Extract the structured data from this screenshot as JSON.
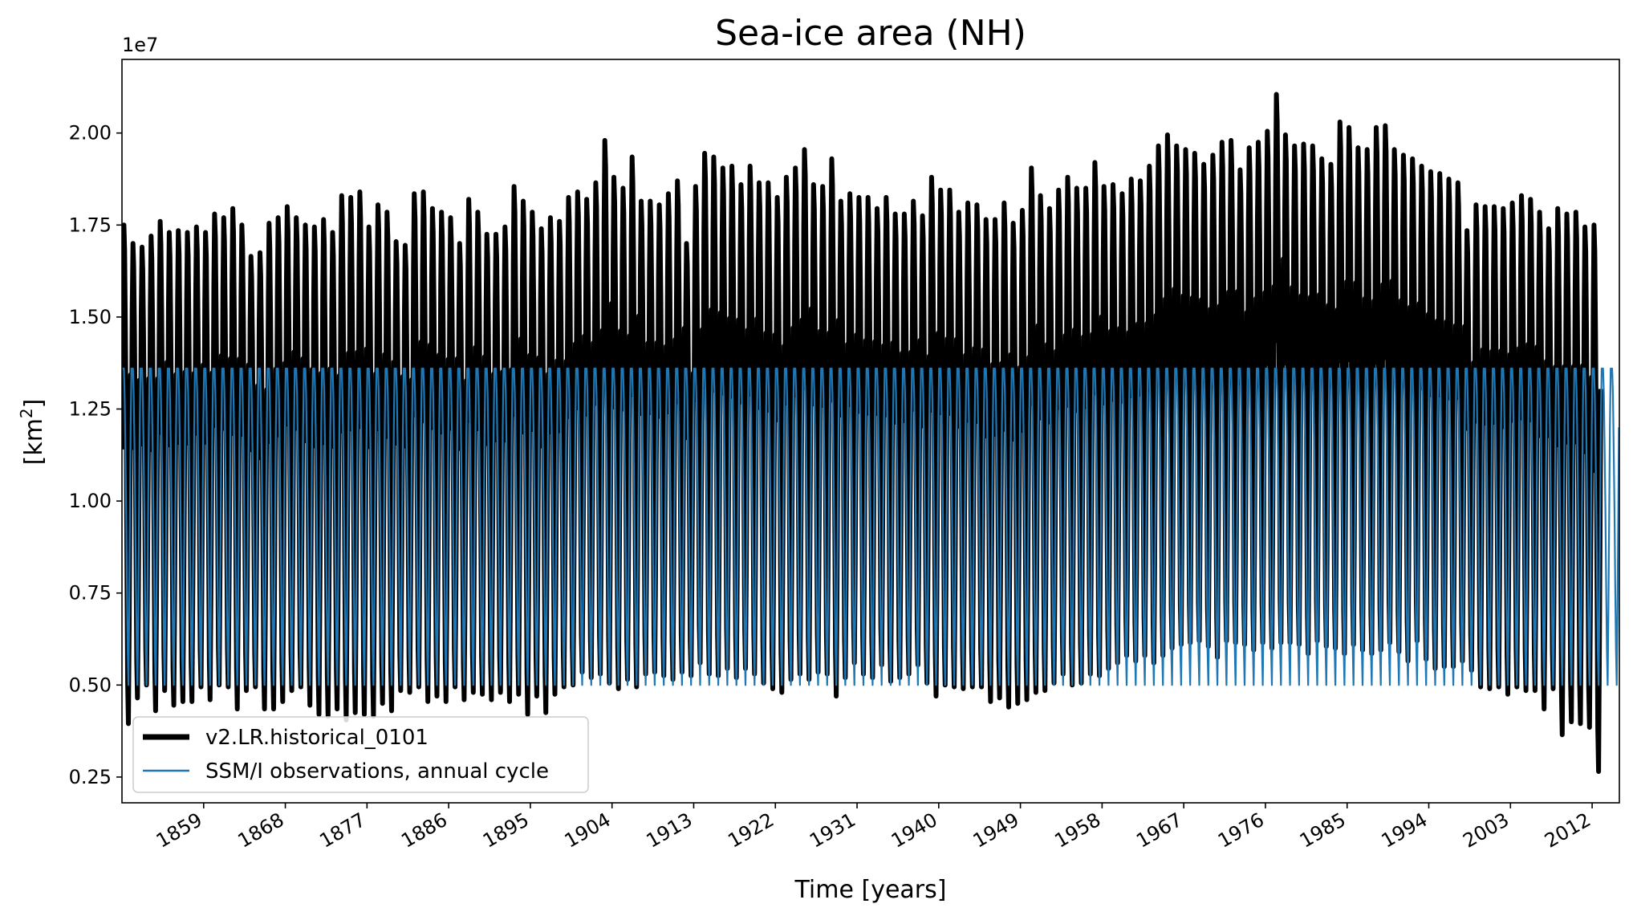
{
  "chart_data": {
    "type": "line",
    "title": "Sea-ice area (NH)",
    "xlabel": "Time [years]",
    "ylabel_base": "[km",
    "ylabel_sup": "2",
    "ylabel_end": "]",
    "offset_text": "1e7",
    "xlim": [
      1850,
      2015
    ],
    "ylim": [
      1800000,
      22000000
    ],
    "x_ticks": [
      1859,
      1868,
      1877,
      1886,
      1895,
      1904,
      1913,
      1922,
      1931,
      1940,
      1949,
      1958,
      1967,
      1976,
      1985,
      1994,
      2003,
      2012
    ],
    "y_ticks": [
      2500000,
      5000000,
      7500000,
      10000000,
      12500000,
      15000000,
      17500000,
      20000000
    ],
    "y_tick_labels": [
      "0.25",
      "0.50",
      "0.75",
      "1.00",
      "1.25",
      "1.50",
      "1.75",
      "2.00"
    ],
    "legend_position": "lower-left",
    "series": [
      {
        "name": "v2.LR.historical_0101",
        "color": "#000000",
        "monthly": true,
        "years": [
          1850,
          1851,
          1852,
          1853,
          1854,
          1855,
          1856,
          1857,
          1858,
          1859,
          1860,
          1861,
          1862,
          1863,
          1864,
          1865,
          1866,
          1867,
          1868,
          1869,
          1870,
          1871,
          1872,
          1873,
          1874,
          1875,
          1876,
          1877,
          1878,
          1879,
          1880,
          1881,
          1882,
          1883,
          1884,
          1885,
          1886,
          1887,
          1888,
          1889,
          1890,
          1891,
          1892,
          1893,
          1894,
          1895,
          1896,
          1897,
          1898,
          1899,
          1900,
          1901,
          1902,
          1903,
          1904,
          1905,
          1906,
          1907,
          1908,
          1909,
          1910,
          1911,
          1912,
          1913,
          1914,
          1915,
          1916,
          1917,
          1918,
          1919,
          1920,
          1921,
          1922,
          1923,
          1924,
          1925,
          1926,
          1927,
          1928,
          1929,
          1930,
          1931,
          1932,
          1933,
          1934,
          1935,
          1936,
          1937,
          1938,
          1939,
          1940,
          1941,
          1942,
          1943,
          1944,
          1945,
          1946,
          1947,
          1948,
          1949,
          1950,
          1951,
          1952,
          1953,
          1954,
          1955,
          1956,
          1957,
          1958,
          1959,
          1960,
          1961,
          1962,
          1963,
          1964,
          1965,
          1966,
          1967,
          1968,
          1969,
          1970,
          1971,
          1972,
          1973,
          1974,
          1975,
          1976,
          1977,
          1978,
          1979,
          1980,
          1981,
          1982,
          1983,
          1984,
          1985,
          1986,
          1987,
          1988,
          1989,
          1990,
          1991,
          1992,
          1993,
          1994,
          1995,
          1996,
          1997,
          1998,
          1999,
          2000,
          2001,
          2002,
          2003,
          2004,
          2005,
          2006,
          2007,
          2008,
          2009,
          2010,
          2011,
          2012,
          2013,
          2014
        ],
        "annual_max": [
          17500000,
          17000000,
          16900000,
          17200000,
          17600000,
          17300000,
          17350000,
          17300000,
          17450000,
          17300000,
          17800000,
          17700000,
          17950000,
          17500000,
          16650000,
          16750000,
          17550000,
          17700000,
          18000000,
          17700000,
          17500000,
          17450000,
          17650000,
          17300000,
          18300000,
          18250000,
          18400000,
          17450000,
          18050000,
          17850000,
          17050000,
          16950000,
          18350000,
          18400000,
          17950000,
          17850000,
          17700000,
          17000000,
          18200000,
          17850000,
          17250000,
          17250000,
          17450000,
          18550000,
          18150000,
          17850000,
          17400000,
          17700000,
          17600000,
          18250000,
          18400000,
          18200000,
          18650000,
          19800000,
          18800000,
          18500000,
          19350000,
          18150000,
          18150000,
          18050000,
          18350000,
          18700000,
          17000000,
          18550000,
          19450000,
          19350000,
          19050000,
          19100000,
          18600000,
          19100000,
          18650000,
          18650000,
          18250000,
          18800000,
          19050000,
          19550000,
          18600000,
          18550000,
          19300000,
          18150000,
          18350000,
          18250000,
          18250000,
          17950000,
          18250000,
          17800000,
          17800000,
          18150000,
          17750000,
          18800000,
          18450000,
          18450000,
          17850000,
          18100000,
          18050000,
          17650000,
          17650000,
          18100000,
          17550000,
          17900000,
          19050000,
          18300000,
          17950000,
          18450000,
          18800000,
          18500000,
          18500000,
          19200000,
          18550000,
          18600000,
          18350000,
          18750000,
          18700000,
          19100000,
          19650000,
          19950000,
          19650000,
          19550000,
          19450000,
          19150000,
          19400000,
          19750000,
          19800000,
          19000000,
          19600000,
          19750000,
          20050000,
          21050000,
          19950000,
          19650000,
          19700000,
          19650000,
          19300000,
          19150000,
          20300000,
          20150000,
          19600000,
          19550000,
          20150000,
          20200000,
          19550000,
          19400000,
          19300000,
          19100000,
          18950000,
          18900000,
          18750000,
          18650000,
          17350000,
          18050000,
          18000000,
          18000000,
          17950000,
          18100000,
          18300000,
          18200000,
          17850000,
          17400000,
          17950000,
          17800000,
          17850000,
          17450000,
          17500000
        ],
        "annual_min": [
          3950000,
          4650000,
          5000000,
          4300000,
          4850000,
          4450000,
          4550000,
          4550000,
          4950000,
          4600000,
          5000000,
          4950000,
          4350000,
          4850000,
          4950000,
          4350000,
          4350000,
          4550000,
          4850000,
          4950000,
          4450000,
          4200000,
          4150000,
          4350000,
          4050000,
          4250000,
          4200000,
          4150000,
          4500000,
          4300000,
          4850000,
          4800000,
          4950000,
          4550000,
          4700000,
          4550000,
          4950000,
          4600000,
          4800000,
          4750000,
          4600000,
          4800000,
          4550000,
          4750000,
          4200000,
          4700000,
          4250000,
          4750000,
          4950000,
          5000000,
          5350000,
          5200000,
          5300000,
          5050000,
          4900000,
          5150000,
          4950000,
          5300000,
          5350000,
          5250000,
          5150000,
          5350000,
          5250000,
          5600000,
          5300000,
          5250000,
          5450000,
          5200000,
          5450000,
          5300000,
          5050000,
          4900000,
          4800000,
          5150000,
          5300000,
          5150000,
          5350000,
          5300000,
          4700000,
          5200000,
          5600000,
          5300000,
          5200000,
          5550000,
          5100000,
          5200000,
          5300000,
          5550000,
          5050000,
          4700000,
          5000000,
          4950000,
          4900000,
          4950000,
          4950000,
          4550000,
          4650000,
          4400000,
          4500000,
          4600000,
          4800000,
          4850000,
          5050000,
          5300000,
          5000000,
          5050000,
          5300000,
          5250000,
          5450000,
          5600000,
          5800000,
          5650000,
          5800000,
          5600000,
          5800000,
          6000000,
          6100000,
          6150000,
          6200000,
          6050000,
          5750000,
          6200000,
          6150000,
          6100000,
          5950000,
          6150000,
          6000000,
          6150000,
          6150000,
          6100000,
          5850000,
          6200000,
          6050000,
          6000000,
          5850000,
          6100000,
          5950000,
          5850000,
          5950000,
          6150000,
          5900000,
          5650000,
          6200000,
          5700000,
          5450000,
          5500000,
          5500000,
          5650000,
          5400000,
          4950000,
          4900000,
          4950000,
          4750000,
          4950000,
          4850000,
          4850000,
          4350000,
          4900000,
          3650000,
          4000000,
          3950000,
          3850000,
          2650000
        ]
      },
      {
        "name": "SSM/I observations, annual cycle",
        "color": "#1f77b4",
        "monthly": true,
        "annual_cycle": [
          13600000,
          13600000,
          13600000,
          12900000,
          11500000,
          9800000,
          7800000,
          5950000,
          5000000,
          6900000,
          9500000,
          12000000
        ]
      }
    ],
    "grid": false
  }
}
